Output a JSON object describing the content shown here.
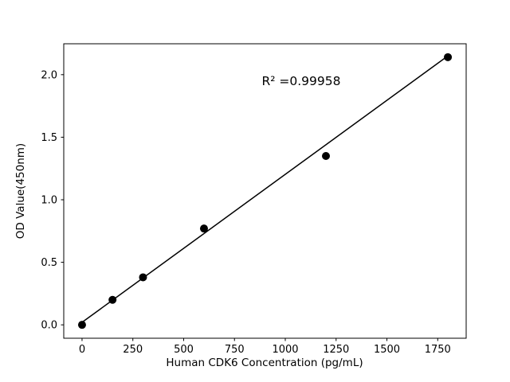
{
  "chart_data": {
    "type": "scatter",
    "title": "",
    "xlabel": "Human CDK6 Concentration (pg/mL)",
    "ylabel": "OD Value(450nm)",
    "annotation": "R² =0.99958",
    "x_ticks": [
      0,
      250,
      500,
      750,
      1000,
      1250,
      1500,
      1750
    ],
    "x_tick_labels": [
      "0",
      "250",
      "500",
      "750",
      "1000",
      "1250",
      "1500",
      "1750"
    ],
    "y_ticks": [
      0.0,
      0.5,
      1.0,
      1.5,
      2.0
    ],
    "y_tick_labels": [
      "0.0",
      "0.5",
      "1.0",
      "1.5",
      "2.0"
    ],
    "xlim": [
      -90,
      1890
    ],
    "ylim": [
      -0.107,
      2.247
    ],
    "grid": false,
    "legend": "none",
    "points": [
      {
        "x": 0,
        "y": 0.0
      },
      {
        "x": 150,
        "y": 0.2
      },
      {
        "x": 300,
        "y": 0.38
      },
      {
        "x": 600,
        "y": 0.77
      },
      {
        "x": 1200,
        "y": 1.35
      },
      {
        "x": 1800,
        "y": 2.14
      }
    ],
    "fit_line": {
      "x1": 0,
      "y1": 0.02,
      "x2": 1800,
      "y2": 2.15
    },
    "colors": {
      "point": "#000000",
      "line": "#000000",
      "axis": "#000000",
      "background": "#ffffff"
    }
  }
}
